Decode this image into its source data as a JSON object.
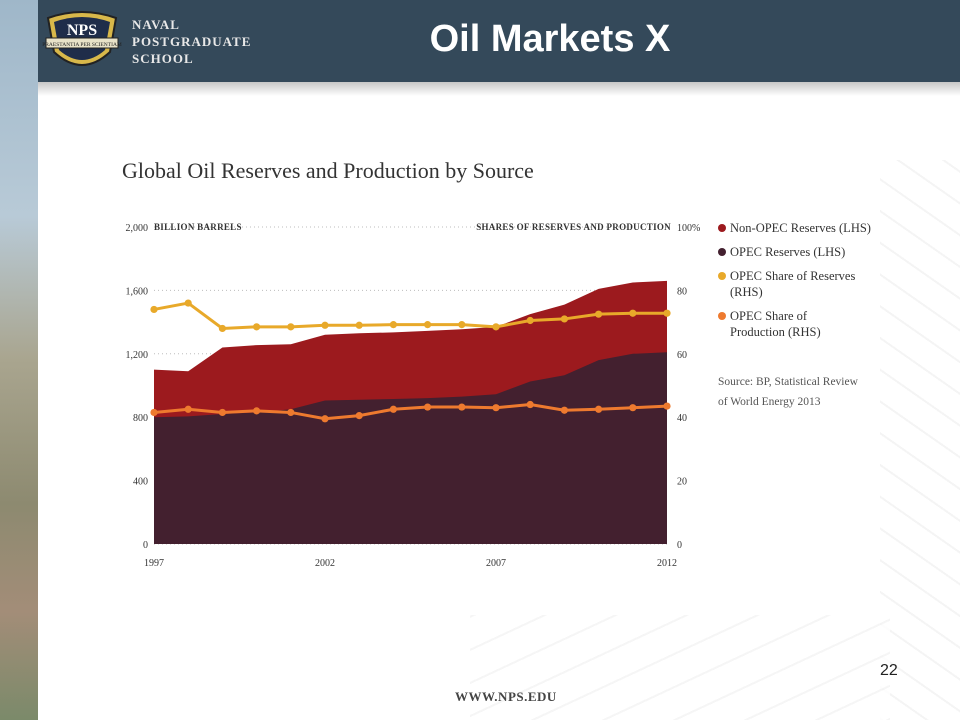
{
  "header": {
    "school_lines": [
      "NAVAL",
      "POSTGRADUATE",
      "SCHOOL"
    ],
    "logo_text": "NPS",
    "logo_motto": "PRAESTANTIA PER SCIENTIAM",
    "title": "Oil Markets X"
  },
  "footer": {
    "url": "WWW.NPS.EDU",
    "page_number": "22"
  },
  "colors": {
    "header_bg": "#34495a",
    "non_opec": "#9c1a1e",
    "opec_reserves": "#43202f",
    "opec_share_reserves": "#e8a92a",
    "opec_share_production": "#ee7a2f"
  },
  "chart_data": {
    "type": "area",
    "title": "Global Oil Reserves and Production by Source",
    "left_axis_label": "BILLION BARRELS",
    "right_axis_label": "SHARES OF RESERVES AND PRODUCTION",
    "x": [
      1997,
      1998,
      1999,
      2000,
      2001,
      2002,
      2003,
      2004,
      2005,
      2006,
      2007,
      2008,
      2009,
      2010,
      2011,
      2012
    ],
    "x_tick_labels": [
      "1997",
      "2002",
      "2007",
      "2012"
    ],
    "x_tick_values": [
      1997,
      2002,
      2007,
      2012
    ],
    "ylim_left": [
      0,
      2000
    ],
    "y_ticks_left": [
      "2,000",
      "1,600",
      "1,200",
      "800",
      "400",
      "0"
    ],
    "y_tick_values_left": [
      2000,
      1600,
      1200,
      800,
      400,
      0
    ],
    "ylim_right": [
      0,
      100
    ],
    "y_ticks_right": [
      "100%",
      "80",
      "60",
      "40",
      "20",
      "0"
    ],
    "y_tick_values_right": [
      100,
      80,
      60,
      40,
      20,
      0
    ],
    "grid": "dotted horizontal",
    "legend_position": "right",
    "source": [
      "Source: BP, Statistical Review",
      "of World Energy 2013"
    ],
    "series": [
      {
        "name": "Non-OPEC Reserves (LHS)",
        "type": "area",
        "axis": "left",
        "values": [
          1100,
          1090,
          1240,
          1255,
          1260,
          1320,
          1330,
          1335,
          1345,
          1355,
          1370,
          1450,
          1510,
          1610,
          1650,
          1660
        ]
      },
      {
        "name": "OPEC Reserves (LHS)",
        "type": "area",
        "axis": "left",
        "values": [
          800,
          805,
          820,
          830,
          850,
          905,
          910,
          915,
          920,
          930,
          945,
          1025,
          1065,
          1160,
          1200,
          1210
        ]
      },
      {
        "name": "OPEC Share of Reserves (RHS)",
        "type": "line",
        "axis": "right",
        "values": [
          74,
          76,
          68,
          68.5,
          68.5,
          69,
          69,
          69.2,
          69.2,
          69.2,
          68.5,
          70.5,
          71,
          72.5,
          72.8,
          72.8
        ]
      },
      {
        "name": "OPEC Share of Production (RHS)",
        "type": "line",
        "axis": "right",
        "values": [
          41.5,
          42.5,
          41.5,
          42,
          41.5,
          39.5,
          40.5,
          42.5,
          43.2,
          43.2,
          43,
          44,
          42.2,
          42.5,
          43,
          43.5
        ]
      }
    ]
  }
}
